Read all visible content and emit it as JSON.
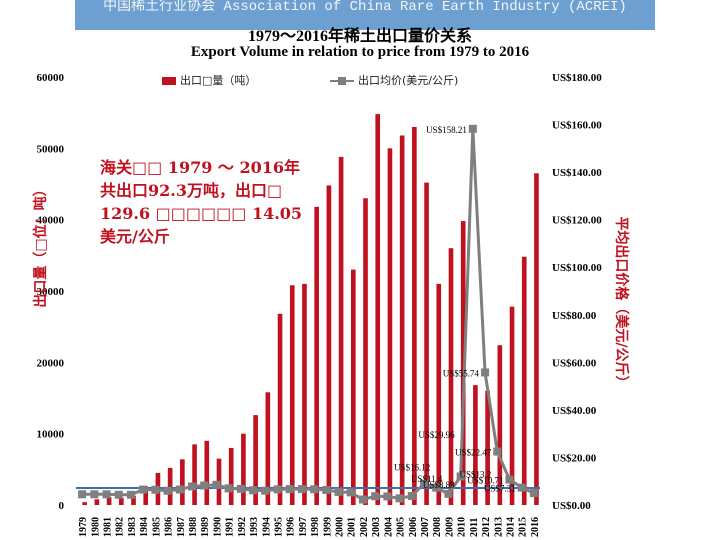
{
  "banner": "中国稀土行业协会 Association of China Rare Earth Industry (ACREI)",
  "title_cn": "1979～2016年稀土出口量价关系",
  "title_en": "Export Volume in relation to price from 1979 to 2016",
  "note": "海关□□ 1979 ～ 2016年共出口92.3万吨，出口□ 129.6 □□□□□□ 14.05美元/公斤",
  "colors": {
    "bar": "#c0111f",
    "line": "#7f7f7f",
    "baseline": "#3a6fb0",
    "text_red": "#c0111f"
  },
  "chart_data": {
    "type": "bar",
    "categories": [
      "1979",
      "1980",
      "1981",
      "1982",
      "1983",
      "1984",
      "1985",
      "1986",
      "1987",
      "1988",
      "1989",
      "1990",
      "1991",
      "1992",
      "1993",
      "1994",
      "1995",
      "1996",
      "1997",
      "1998",
      "1999",
      "2000",
      "2001",
      "2002",
      "2003",
      "2004",
      "2005",
      "2006",
      "2007",
      "2008",
      "2009",
      "2010",
      "2011",
      "2012",
      "2013",
      "2014",
      "2015",
      "2016"
    ],
    "series": [
      {
        "name": "出口□量（吨）",
        "type": "bar",
        "axis": "left",
        "values": [
          400,
          800,
          1100,
          1000,
          1300,
          2600,
          4500,
          5200,
          6400,
          8500,
          9000,
          6500,
          8000,
          10000,
          12600,
          15800,
          26800,
          30800,
          31000,
          41800,
          44800,
          48800,
          33000,
          43000,
          54800,
          50000,
          51800,
          53000,
          45200,
          31000,
          36000,
          39800,
          16800,
          16000,
          22400,
          27800,
          34800,
          46500
        ]
      },
      {
        "name": "出口均价(美元/公斤)",
        "type": "line",
        "axis": "right",
        "values": [
          4.5,
          4.5,
          4.5,
          4.3,
          4.3,
          6.5,
          6.4,
          6.0,
          6.5,
          7.8,
          8.2,
          8.5,
          7.0,
          6.8,
          6.2,
          6.0,
          6.6,
          6.7,
          6.7,
          6.6,
          6.3,
          5.5,
          5.3,
          2.3,
          3.7,
          3.6,
          2.8,
          3.8,
          9.0,
          7.3,
          4.7,
          12.0,
          158.21,
          55.74,
          22.47,
          10.71,
          7.31,
          5.0
        ]
      }
    ],
    "yleft": {
      "ticks": [
        "0",
        "10000",
        "20000",
        "30000",
        "40000",
        "50000",
        "60000"
      ],
      "range": [
        0,
        60000
      ]
    },
    "yright": {
      "ticks": [
        "US$0.00",
        "US$20.00",
        "US$40.00",
        "US$60.00",
        "US$80.00",
        "US$100.00",
        "US$120.00",
        "US$140.00",
        "US$160.00",
        "US$180.00"
      ],
      "range": [
        0,
        180
      ]
    },
    "ylabel_left": "出口量（□位：吨）",
    "ylabel_right": "平均出口价格（美元/公斤）",
    "annotations": [
      {
        "text": "US$158.21",
        "year": "2011",
        "value": 158.21
      },
      {
        "text": "US$55.74",
        "year": "2012",
        "value": 55.74
      },
      {
        "text": "US$22.47",
        "year": "2013",
        "value": 22.47
      },
      {
        "text": "US$10.71",
        "year": "2014",
        "value": 10.71
      },
      {
        "text": "US$7.31",
        "year": "2015",
        "value": 7.31
      },
      {
        "text": "US$16.12",
        "year": "2008",
        "value": 16.12
      },
      {
        "text": "US$29.96",
        "year": "2010",
        "value": 29.96
      },
      {
        "text": "US$11.4",
        "year": "2009",
        "value": 11.4
      },
      {
        "text": "US$13.2",
        "year": "2013",
        "value": 13.2
      },
      {
        "text": "US$8.89",
        "year": "2010",
        "value": 8.89
      }
    ],
    "grid": false,
    "legend": "top"
  }
}
